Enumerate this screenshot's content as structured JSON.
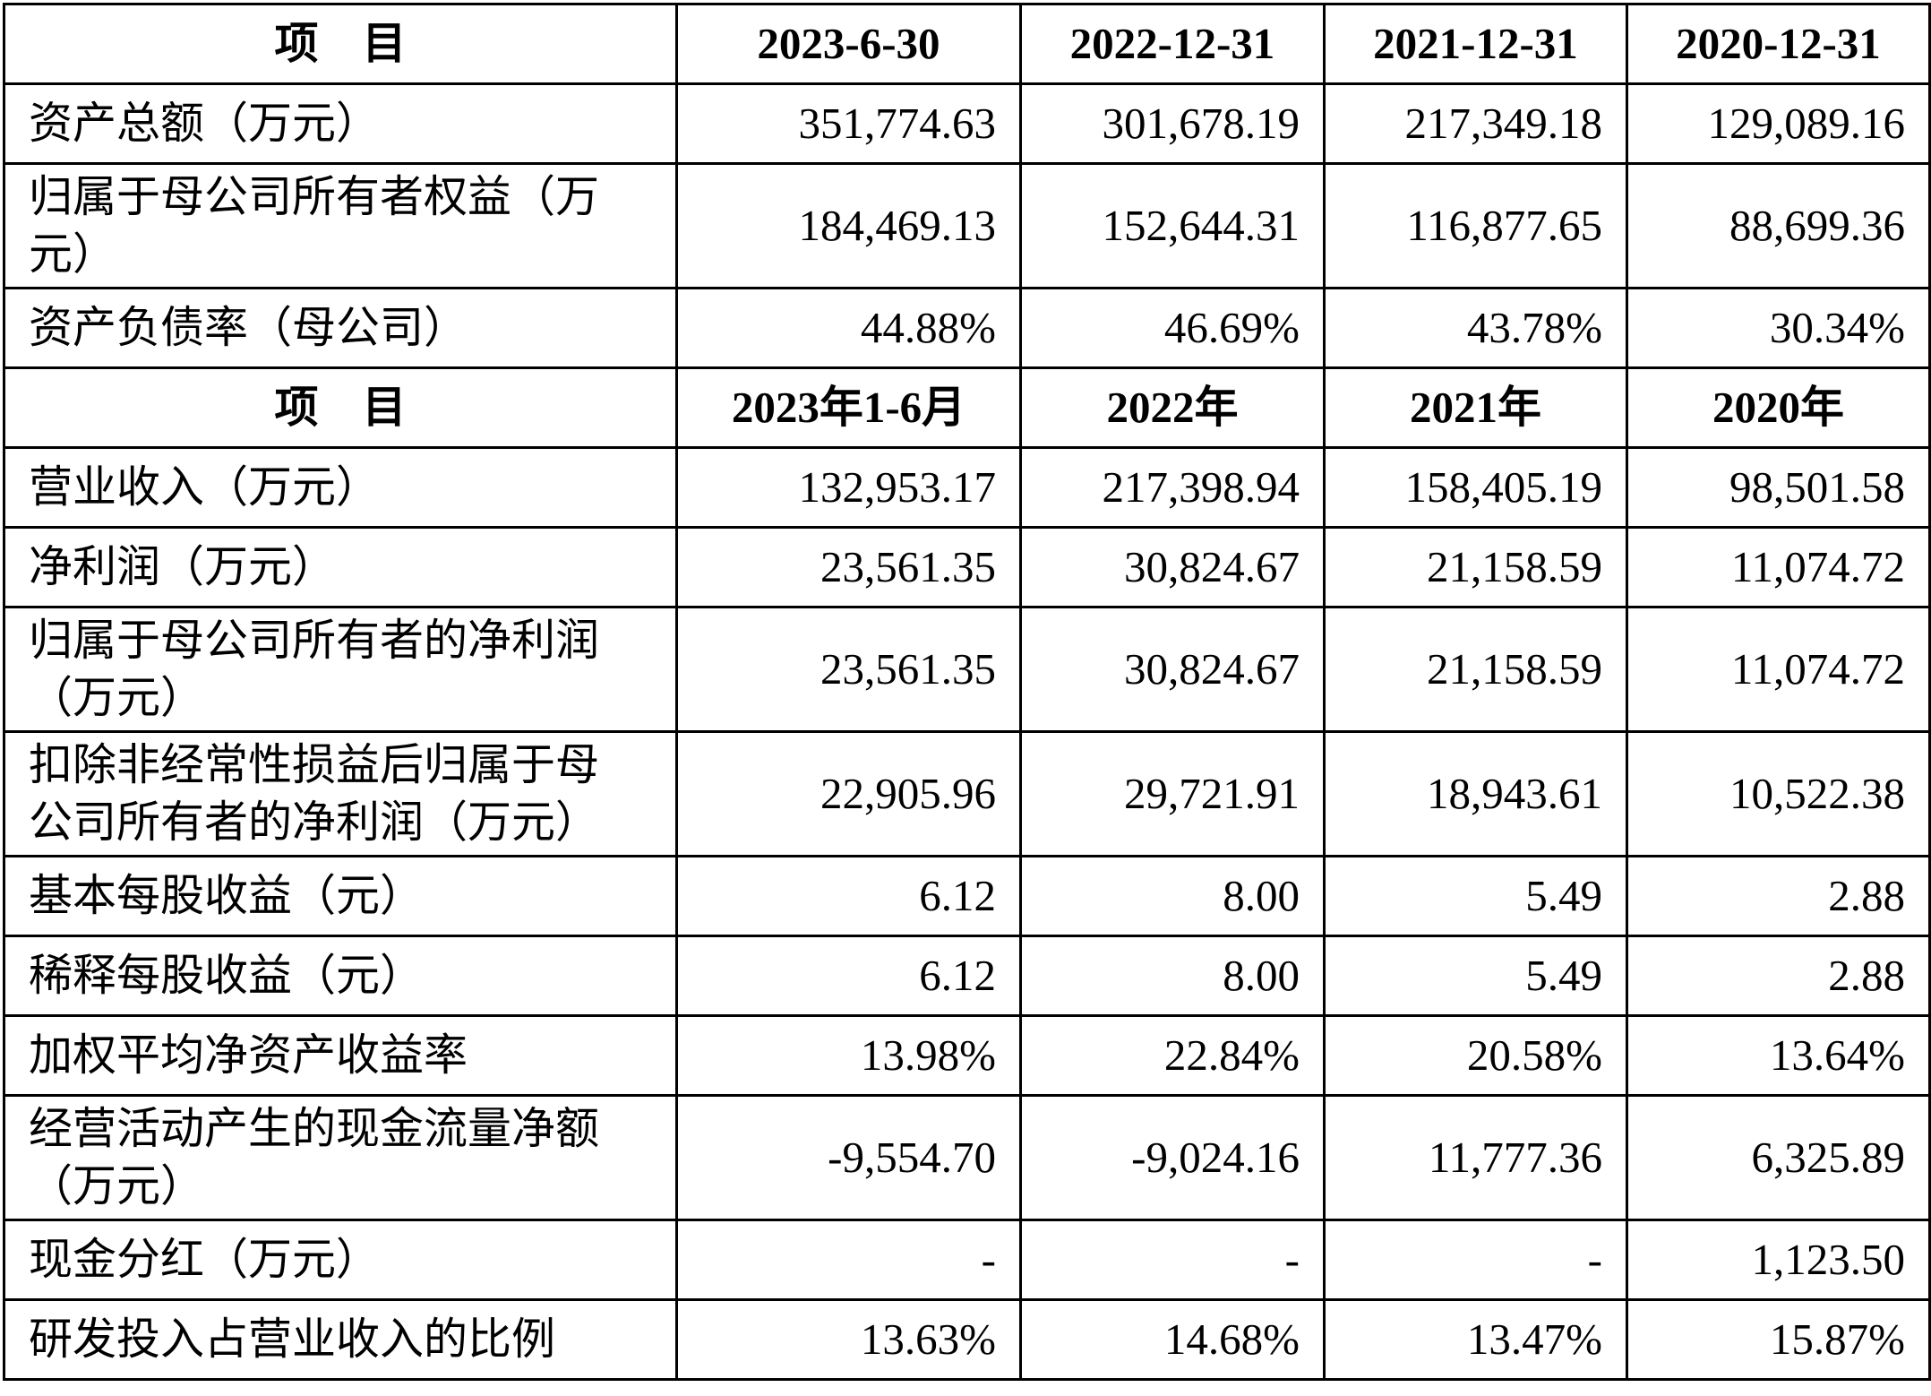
{
  "table": {
    "sections": [
      {
        "header": [
          "项　目",
          "2023-6-30",
          "2022-12-31",
          "2021-12-31",
          "2020-12-31"
        ],
        "rows": [
          [
            "资产总额（万元）",
            "351,774.63",
            "301,678.19",
            "217,349.18",
            "129,089.16"
          ],
          [
            "归属于母公司所有者权益（万元）",
            "184,469.13",
            "152,644.31",
            "116,877.65",
            "88,699.36"
          ],
          [
            "资产负债率（母公司）",
            "44.88%",
            "46.69%",
            "43.78%",
            "30.34%"
          ]
        ]
      },
      {
        "header": [
          "项　目",
          "2023年1-6月",
          "2022年",
          "2021年",
          "2020年"
        ],
        "rows": [
          [
            "营业收入（万元）",
            "132,953.17",
            "217,398.94",
            "158,405.19",
            "98,501.58"
          ],
          [
            "净利润（万元）",
            "23,561.35",
            "30,824.67",
            "21,158.59",
            "11,074.72"
          ],
          [
            "归属于母公司所有者的净利润（万元）",
            "23,561.35",
            "30,824.67",
            "21,158.59",
            "11,074.72"
          ],
          [
            "扣除非经常性损益后归属于母公司所有者的净利润（万元）",
            "22,905.96",
            "29,721.91",
            "18,943.61",
            "10,522.38"
          ],
          [
            "基本每股收益（元）",
            "6.12",
            "8.00",
            "5.49",
            "2.88"
          ],
          [
            "稀释每股收益（元）",
            "6.12",
            "8.00",
            "5.49",
            "2.88"
          ],
          [
            "加权平均净资产收益率",
            "13.98%",
            "22.84%",
            "20.58%",
            "13.64%"
          ],
          [
            "经营活动产生的现金流量净额（万元）",
            "-9,554.70",
            "-9,024.16",
            "11,777.36",
            "6,325.89"
          ],
          [
            "现金分红（万元）",
            "-",
            "-",
            "-",
            "1,123.50"
          ],
          [
            "研发投入占营业收入的比例",
            "13.63%",
            "14.68%",
            "13.47%",
            "15.87%"
          ]
        ]
      }
    ]
  }
}
